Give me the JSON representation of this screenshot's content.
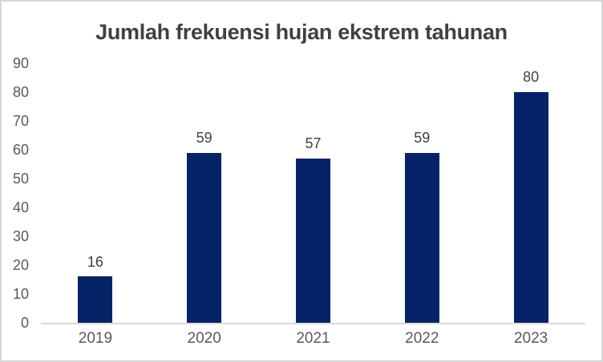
{
  "chart_data": {
    "type": "bar",
    "title": "Jumlah frekuensi hujan ekstrem tahunan",
    "categories": [
      "2019",
      "2020",
      "2021",
      "2022",
      "2023"
    ],
    "values": [
      16,
      59,
      57,
      59,
      80
    ],
    "data_labels": [
      "16",
      "59",
      "57",
      "59",
      "80"
    ],
    "xlabel": "",
    "ylabel": "",
    "ylim": [
      0,
      90
    ],
    "y_ticks": [
      0,
      10,
      20,
      30,
      40,
      50,
      60,
      70,
      80,
      90
    ],
    "grid": false,
    "legend": false,
    "data_labels_position": "above-bar",
    "colors": {
      "bar": "#052366",
      "title_text": "#404040",
      "axis_tick_text": "#595959",
      "data_label_text": "#404040",
      "axis_line": "#d9d9d9",
      "frame_border": "#d6d6d6",
      "background": "#ffffff"
    }
  }
}
